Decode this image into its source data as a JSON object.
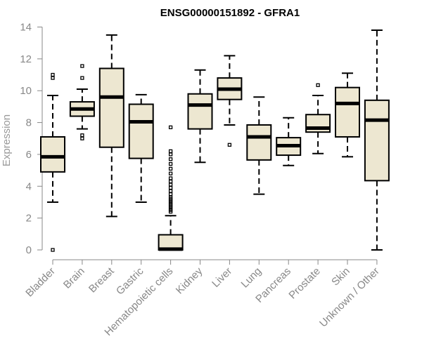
{
  "chart_data": {
    "type": "boxplot",
    "title": "ENSG00000151892 - GFRA1",
    "ylabel": "Expression",
    "xlabel": "",
    "ylim": [
      0,
      14
    ],
    "yticks": [
      0,
      2,
      4,
      6,
      8,
      10,
      12,
      14
    ],
    "box_fill": "#ede7d1",
    "box_stroke": "#000000",
    "categories": [
      "Bladder",
      "Brain",
      "Breast",
      "Gastric",
      "Hematopoietic cells",
      "Kidney",
      "Liver",
      "Lung",
      "Pancreas",
      "Prostate",
      "Skin",
      "Unknown / Other"
    ],
    "boxes": [
      {
        "whislo": 3.0,
        "q1": 4.9,
        "med": 5.85,
        "q3": 7.1,
        "whishi": 9.7,
        "fliers": [
          0.0,
          10.8,
          11.0
        ]
      },
      {
        "whislo": 7.6,
        "q1": 8.4,
        "med": 8.85,
        "q3": 9.3,
        "whishi": 10.1,
        "fliers": [
          7.0,
          7.2,
          10.8,
          11.55
        ]
      },
      {
        "whislo": 2.1,
        "q1": 6.45,
        "med": 9.6,
        "q3": 11.4,
        "whishi": 13.5,
        "fliers": []
      },
      {
        "whislo": 3.0,
        "q1": 5.75,
        "med": 8.05,
        "q3": 9.15,
        "whishi": 9.75,
        "fliers": []
      },
      {
        "whislo": 0.0,
        "q1": 0.0,
        "med": 0.05,
        "q3": 0.95,
        "whishi": 2.15,
        "fliers": [
          2.4,
          2.5,
          2.6,
          2.7,
          2.8,
          2.9,
          3.0,
          3.1,
          3.2,
          3.3,
          3.5,
          3.7,
          3.9,
          4.1,
          4.3,
          4.5,
          4.8,
          5.1,
          5.4,
          5.7,
          6.0,
          6.2,
          7.7
        ]
      },
      {
        "whislo": 5.5,
        "q1": 7.6,
        "med": 9.1,
        "q3": 9.8,
        "whishi": 11.3,
        "fliers": []
      },
      {
        "whislo": 7.85,
        "q1": 9.45,
        "med": 10.1,
        "q3": 10.8,
        "whishi": 12.2,
        "fliers": [
          6.6
        ]
      },
      {
        "whislo": 3.5,
        "q1": 5.65,
        "med": 7.1,
        "q3": 7.85,
        "whishi": 9.6,
        "fliers": []
      },
      {
        "whislo": 5.3,
        "q1": 5.95,
        "med": 6.55,
        "q3": 7.05,
        "whishi": 8.3,
        "fliers": []
      },
      {
        "whislo": 6.05,
        "q1": 7.4,
        "med": 7.65,
        "q3": 8.5,
        "whishi": 9.7,
        "fliers": [
          10.35
        ]
      },
      {
        "whislo": 5.85,
        "q1": 7.1,
        "med": 9.2,
        "q3": 10.2,
        "whishi": 11.1,
        "fliers": []
      },
      {
        "whislo": 0.0,
        "q1": 4.35,
        "med": 8.15,
        "q3": 9.4,
        "whishi": 13.8,
        "fliers": []
      }
    ]
  }
}
